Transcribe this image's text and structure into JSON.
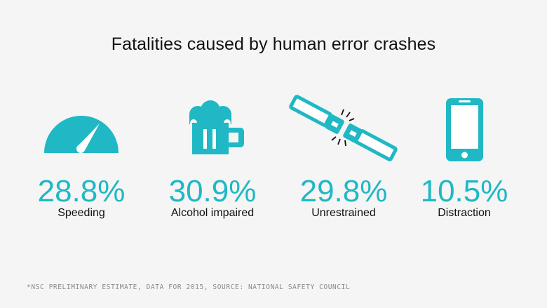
{
  "title": "Fatalities caused by human error crashes",
  "colors": {
    "accent": "#1fb8c4",
    "text": "#111111",
    "background": "#f5f5f5",
    "footnote": "#8a8a8a"
  },
  "chart_data": {
    "type": "table",
    "title": "Fatalities caused by human error crashes",
    "unit": "%",
    "categories": [
      "Speeding",
      "Alcohol impaired",
      "Unrestrained",
      "Distraction"
    ],
    "values": [
      28.8,
      30.9,
      29.8,
      10.5
    ],
    "value_labels": [
      "28.8%",
      "30.9%",
      "29.8%",
      "10.5%"
    ],
    "icons": [
      "speedometer-icon",
      "beer-mug-icon",
      "seatbelt-icon",
      "smartphone-icon"
    ]
  },
  "footnote": "*NSC preliminary estimate, data for 2015, source: National Safety Council"
}
